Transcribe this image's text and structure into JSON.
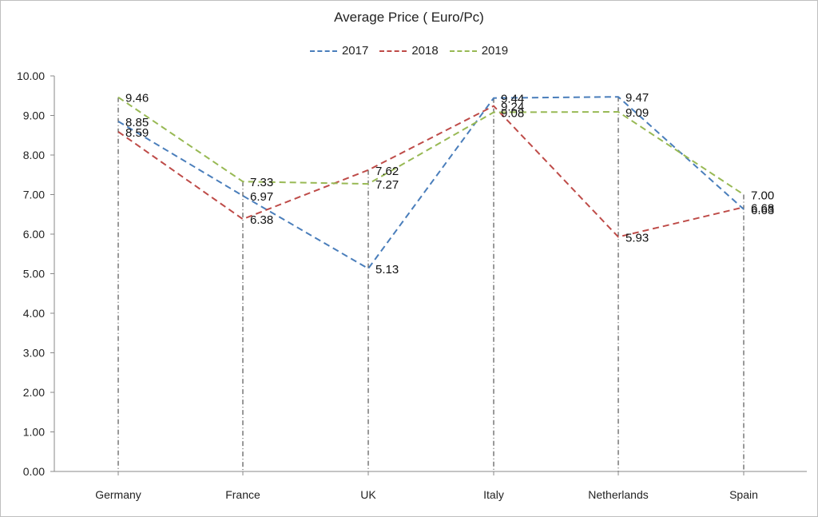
{
  "chart_data": {
    "type": "line",
    "title": "Average Price ( Euro/Pc)",
    "categories": [
      "Germany",
      "France",
      "UK",
      "Italy",
      "Netherlands",
      "Spain"
    ],
    "ylim": [
      0,
      10
    ],
    "yticks": [
      "0.00",
      "1.00",
      "2.00",
      "3.00",
      "4.00",
      "5.00",
      "6.00",
      "7.00",
      "8.00",
      "9.00",
      "10.00"
    ],
    "legend_position": "top-center",
    "grid": false,
    "series": [
      {
        "name": "2017",
        "color": "#4a7ebb",
        "values": [
          8.85,
          6.97,
          5.13,
          9.44,
          9.47,
          6.63
        ],
        "labels": [
          "8.85",
          "6.97",
          "5.13",
          "9.44",
          "9.47",
          "6.63"
        ]
      },
      {
        "name": "2018",
        "color": "#be4b48",
        "values": [
          8.59,
          6.38,
          7.62,
          9.24,
          5.93,
          6.68
        ],
        "labels": [
          "8.59",
          "6.38",
          "7.62",
          "9.24",
          "5.93",
          "6.68"
        ]
      },
      {
        "name": "2019",
        "color": "#98b954",
        "values": [
          9.46,
          7.33,
          7.27,
          9.08,
          9.09,
          7.0
        ],
        "labels": [
          "9.46",
          "7.33",
          "7.27",
          "9.08",
          "9.09",
          "7.00"
        ]
      }
    ]
  }
}
